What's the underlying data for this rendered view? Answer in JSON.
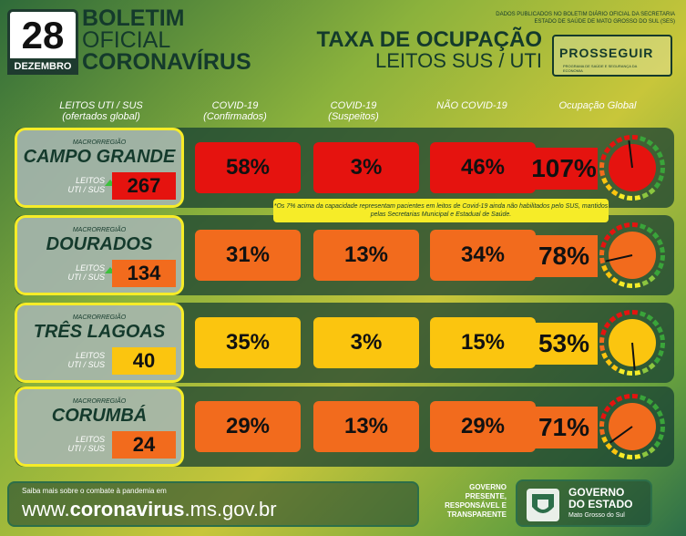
{
  "header": {
    "day": "28",
    "month": "DEZEMBRO",
    "boletim_line1": "BOLETIM",
    "boletim_line2": "OFICIAL",
    "boletim_line3": "CORONAVÍRUS",
    "pub_note": "DADOS PUBLICADOS NO BOLETIM DIÁRIO OFICIAL DA SECRETARIA ESTADO DE SAÚDE DE MATO GROSSO DO SUL (SES)",
    "title_line1": "TAXA DE OCUPAÇÃO",
    "title_line2": "LEITOS SUS / UTI",
    "prosseguir": "PROSSEGUIR",
    "prosseguir_sub": "PROGRAMA DE SAÚDE E SEGURANÇA DA ECONOMIA"
  },
  "columns": {
    "leitos": "LEITOS UTI / SUS\n(ofertados global)",
    "confirmados": "COVID-19\n(Confirmados)",
    "suspeitos": "COVID-19\n(Suspeitos)",
    "nao_covid": "NÃO COVID-19",
    "global": "Ocupação Global"
  },
  "macro_label": "MACRORREGIÃO",
  "leitos_label": "LEITOS\nUTI / SUS",
  "regions": [
    {
      "name": "CAMPO GRANDE",
      "leitos": "267",
      "trend": "up",
      "confirmados": "58%",
      "suspeitos": "3%",
      "nao_covid": "46%",
      "global": "107%",
      "occupation": 1.07,
      "color": "#e5130f",
      "label_color": "#e5130f"
    },
    {
      "name": "DOURADOS",
      "leitos": "134",
      "trend": "up",
      "confirmados": "31%",
      "suspeitos": "13%",
      "nao_covid": "34%",
      "global": "78%",
      "occupation": 0.78,
      "color": "#f26b1d",
      "label_color": "#f26b1d"
    },
    {
      "name": "TRÊS LAGOAS",
      "leitos": "40",
      "trend": "",
      "confirmados": "35%",
      "suspeitos": "3%",
      "nao_covid": "15%",
      "global": "53%",
      "occupation": 0.53,
      "color": "#fbc50f",
      "label_color": "#fbc50f"
    },
    {
      "name": "CORUMBÁ",
      "leitos": "24",
      "trend": "",
      "confirmados": "29%",
      "suspeitos": "13%",
      "nao_covid": "29%",
      "global": "71%",
      "occupation": 0.71,
      "color": "#f26b1d",
      "label_color": "#f26b1d"
    }
  ],
  "note": "*Os 7% acima da capacidade representam pacientes em leitos de Covid-19 ainda não habilitados pelo SUS, mantidos pelas Secretarias Municipal e Estadual de Saúde.",
  "footer": {
    "saiba": "Saiba mais sobre o combate à pandemia em",
    "url_prefix": "www.",
    "url_bold": "coronavirus",
    "url_suffix": ".ms.gov.br",
    "slogan": "GOVERNO\nPRESENTE,\nRESPONSÁVEL E\nTRANSPARENTE",
    "gov_line1": "GOVERNO",
    "gov_line2": "DO ESTADO",
    "gov_sub": "Mato Grosso do Sul"
  }
}
